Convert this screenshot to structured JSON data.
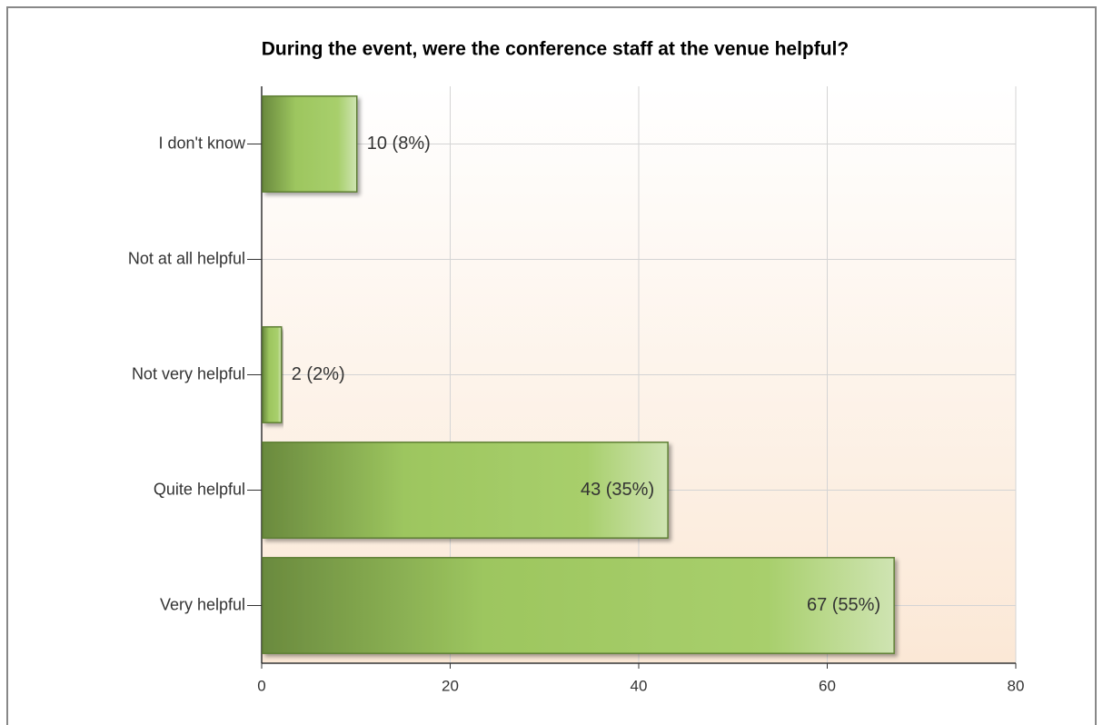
{
  "chart_data": {
    "type": "barh",
    "title": "During the event, were the conference staff at the venue helpful?",
    "categories": [
      "I don't know",
      "Not at all helpful",
      "Not very helpful",
      "Quite helpful",
      "Very helpful"
    ],
    "values": [
      10,
      0,
      2,
      43,
      67
    ],
    "value_labels": [
      "10 (8%)",
      null,
      "2 (2%)",
      "43 (35%)",
      "67 (55%)"
    ],
    "color": "#9dc65f",
    "xlim": [
      0,
      80
    ],
    "xticks": [
      0,
      20,
      40,
      60,
      80
    ],
    "grid": true
  }
}
